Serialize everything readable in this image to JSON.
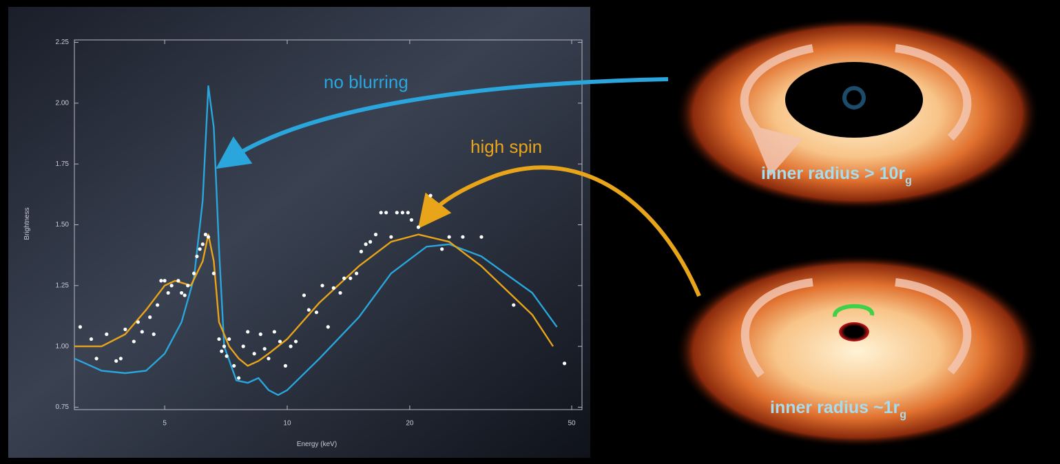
{
  "chart_data": {
    "type": "line",
    "xlabel": "Energy (keV)",
    "ylabel": "Brightness",
    "xscale": "log",
    "xlim": [
      3,
      53
    ],
    "ylim": [
      0.74,
      2.26
    ],
    "xticks": [
      5,
      10,
      20,
      50
    ],
    "yticks": [
      0.75,
      {
        "value": 1,
        "label": "1.00"
      },
      1.25,
      {
        "value": 1.5,
        "label": "1.50"
      },
      1.75,
      {
        "value": 2,
        "label": "2.00"
      },
      2.25
    ],
    "series": [
      {
        "name": "no blurring",
        "color": "#2aa6dc",
        "mode": "line",
        "x": [
          3,
          3.5,
          4,
          4.5,
          5,
          5.5,
          5.9,
          6.2,
          6.4,
          6.6,
          6.8,
          7.0,
          7.5,
          8,
          8.5,
          9,
          9.5,
          10,
          12,
          15,
          18,
          22,
          25,
          30,
          40,
          46
        ],
        "values": [
          0.95,
          0.9,
          0.89,
          0.9,
          0.97,
          1.1,
          1.28,
          1.6,
          2.07,
          1.9,
          1.4,
          1.0,
          0.86,
          0.85,
          0.87,
          0.82,
          0.8,
          0.82,
          0.95,
          1.12,
          1.3,
          1.41,
          1.42,
          1.37,
          1.22,
          1.08
        ]
      },
      {
        "name": "high spin",
        "color": "#e9a51a",
        "mode": "line",
        "x": [
          3,
          3.5,
          4,
          4.5,
          5,
          5.3,
          5.8,
          6.2,
          6.4,
          6.6,
          6.8,
          7.2,
          7.6,
          8,
          8.5,
          9,
          10,
          12,
          15,
          18,
          21,
          25,
          30,
          40,
          45
        ],
        "values": [
          1.0,
          1.0,
          1.05,
          1.15,
          1.25,
          1.27,
          1.25,
          1.35,
          1.46,
          1.35,
          1.1,
          1.0,
          0.95,
          0.92,
          0.94,
          0.97,
          1.03,
          1.18,
          1.33,
          1.43,
          1.46,
          1.43,
          1.33,
          1.13,
          1.0
        ]
      },
      {
        "color": "#ffffff",
        "mode": "markers",
        "x": [
          3.1,
          3.3,
          3.4,
          3.6,
          3.8,
          3.9,
          4.0,
          4.2,
          4.3,
          4.4,
          4.6,
          4.7,
          4.8,
          4.9,
          5.0,
          5.1,
          5.2,
          5.4,
          5.5,
          5.6,
          5.7,
          5.9,
          6.0,
          6.1,
          6.2,
          6.3,
          6.4,
          6.6,
          6.8,
          6.9,
          7.0,
          7.1,
          7.2,
          7.4,
          7.6,
          7.8,
          8.0,
          8.3,
          8.6,
          8.8,
          9.0,
          9.3,
          9.6,
          9.9,
          10.2,
          10.5,
          11.0,
          11.3,
          11.8,
          12.2,
          12.6,
          13.0,
          13.5,
          13.8,
          14.3,
          14.8,
          15.2,
          15.6,
          16.0,
          16.5,
          17.0,
          17.5,
          18.0,
          18.6,
          19.2,
          19.8,
          20.2,
          21.0,
          22.5,
          24,
          25,
          27,
          30,
          36,
          48
        ],
        "values": [
          1.08,
          1.03,
          0.95,
          1.05,
          0.94,
          0.95,
          1.07,
          1.02,
          1.1,
          1.06,
          1.12,
          1.05,
          1.17,
          1.27,
          1.27,
          1.22,
          1.25,
          1.27,
          1.22,
          1.21,
          1.25,
          1.3,
          1.37,
          1.4,
          1.42,
          1.46,
          1.45,
          1.3,
          1.03,
          0.98,
          1.0,
          0.96,
          1.03,
          0.92,
          0.87,
          1.0,
          1.06,
          0.97,
          1.05,
          0.99,
          0.95,
          1.06,
          1.02,
          0.92,
          1.0,
          1.02,
          1.21,
          1.15,
          1.14,
          1.25,
          1.08,
          1.24,
          1.22,
          1.28,
          1.28,
          1.3,
          1.39,
          1.42,
          1.43,
          1.46,
          1.55,
          1.55,
          1.45,
          1.55,
          1.55,
          1.55,
          1.52,
          1.49,
          1.62,
          1.4,
          1.45,
          1.45,
          1.45,
          1.17,
          0.93
        ]
      }
    ]
  },
  "illustrations": [
    {
      "text": "inner radius > 10r",
      "subscript": "g"
    },
    {
      "text": "inner radius ~1r",
      "subscript": "g"
    }
  ]
}
